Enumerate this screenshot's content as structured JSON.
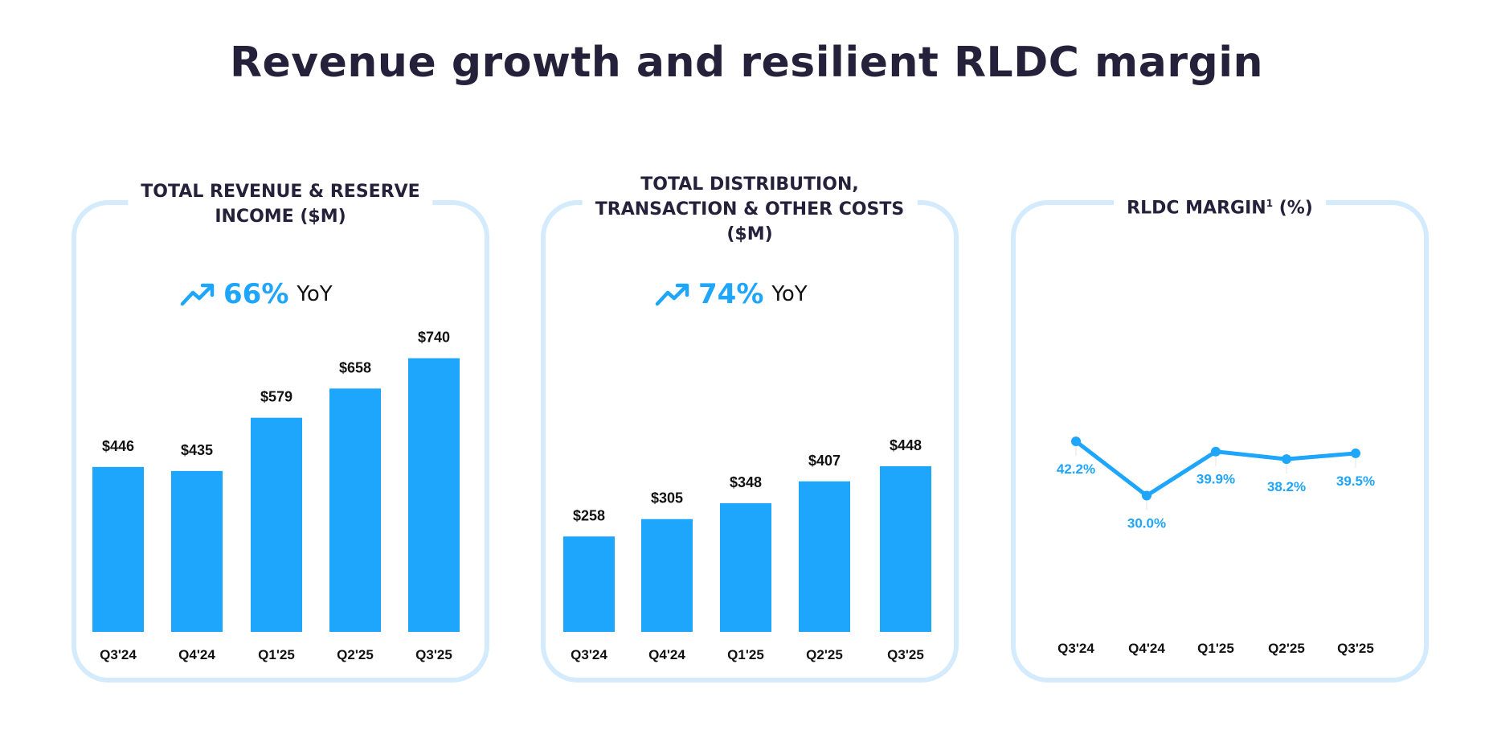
{
  "title": "Revenue growth and resilient RLDC margin",
  "colors": {
    "accent": "#1ea5fc",
    "panel_border": "#d3ebfd",
    "text": "#25213b"
  },
  "chart_data": [
    {
      "type": "bar",
      "title_line1": "TOTAL REVENUE & RESERVE",
      "title_line2": "INCOME ($M)",
      "yoy": {
        "icon": "trending-up-icon",
        "value": "66%",
        "label": "YoY"
      },
      "categories": [
        "Q3'24",
        "Q4'24",
        "Q1'25",
        "Q2'25",
        "Q3'25"
      ],
      "values": [
        446,
        435,
        579,
        658,
        740
      ],
      "labels": [
        "$446",
        "$435",
        "$579",
        "$658",
        "$740"
      ]
    },
    {
      "type": "bar",
      "title_line1": "TOTAL DISTRIBUTION,",
      "title_line2": "TRANSACTION & OTHER COSTS",
      "title_line3": "($M)",
      "yoy": {
        "icon": "trending-up-icon",
        "value": "74%",
        "label": "YoY"
      },
      "categories": [
        "Q3'24",
        "Q4'24",
        "Q1'25",
        "Q2'25",
        "Q3'25"
      ],
      "values": [
        258,
        305,
        348,
        407,
        448
      ],
      "labels": [
        "$258",
        "$305",
        "$348",
        "$407",
        "$448"
      ]
    },
    {
      "type": "line",
      "title": "RLDC MARGIN",
      "title_sup": "1",
      "title_suffix": " (%)",
      "categories": [
        "Q3'24",
        "Q4'24",
        "Q1'25",
        "Q2'25",
        "Q3'25"
      ],
      "values": [
        42.2,
        30.0,
        39.9,
        38.2,
        39.5
      ],
      "labels": [
        "42.2%",
        "30.0%",
        "39.9%",
        "38.2%",
        "39.5%"
      ]
    }
  ]
}
